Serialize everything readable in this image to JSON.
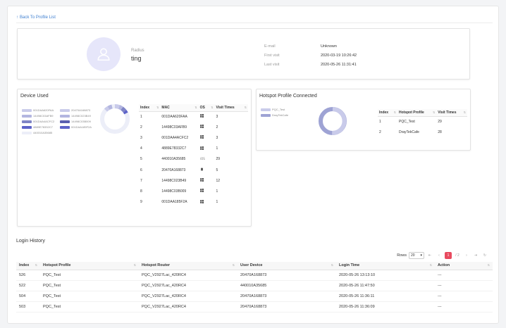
{
  "back_link": "Back To Profile List",
  "profile": {
    "radius_label": "Radius",
    "radius_value": "ting",
    "email_label": "E-mail",
    "email_value": "Unknown",
    "first_visit_label": "First visit",
    "first_visit_value": "2020-03-19 10:26:42",
    "last_visit_label": "Last visit",
    "last_visit_value": "2020-05-26 11:31:41"
  },
  "device_used": {
    "title": "Device Used",
    "legend": [
      {
        "label": "001DAA620FAA",
        "color": "#c9cbea"
      },
      {
        "label": "20470A168873",
        "color": "#c9cbea"
      },
      {
        "label": "14498C03AFB9",
        "color": "#b3b6e0"
      },
      {
        "label": "14498C023B49",
        "color": "#b3b6e0"
      },
      {
        "label": "001DAA4ACFC2",
        "color": "#7f84c6"
      },
      {
        "label": "14498C03B009",
        "color": "#5a5fb0"
      },
      {
        "label": "4889E78332C7",
        "color": "#5d63c9"
      },
      {
        "label": "001DAA185F2A",
        "color": "#5d63c9"
      },
      {
        "label": "440010A35685",
        "color": "#eceef8"
      }
    ],
    "columns": [
      "Index",
      "MAC",
      "OS",
      "Visit Times"
    ],
    "rows": [
      {
        "index": "1",
        "mac": "001DAA620FAA",
        "os": "windows",
        "visits": "3"
      },
      {
        "index": "2",
        "mac": "14498C03AFB9",
        "os": "windows",
        "visits": "2"
      },
      {
        "index": "3",
        "mac": "001DAA4ACFC2",
        "os": "windows",
        "visits": "3"
      },
      {
        "index": "4",
        "mac": "4889E78332C7",
        "os": "windows",
        "visits": "1"
      },
      {
        "index": "5",
        "mac": "440010A35685",
        "os": "ios",
        "visits": "29"
      },
      {
        "index": "6",
        "mac": "20470A168873",
        "os": "android",
        "visits": "5"
      },
      {
        "index": "7",
        "mac": "14498C023B49",
        "os": "windows",
        "visits": "12"
      },
      {
        "index": "8",
        "mac": "14498C03B009",
        "os": "windows",
        "visits": "1"
      },
      {
        "index": "9",
        "mac": "001DAA185F2A",
        "os": "windows",
        "visits": "1"
      }
    ]
  },
  "hotspot_connected": {
    "title": "Hotspot Profile Connected",
    "legend": [
      {
        "label": "PQC_Test",
        "color": "#c9cbea"
      },
      {
        "label": "DrayTekCafe",
        "color": "#9ea3d4"
      }
    ],
    "columns": [
      "Index",
      "Hotspot Profile",
      "Visit Times"
    ],
    "rows": [
      {
        "index": "1",
        "profile": "PQC_Test",
        "visits": "29"
      },
      {
        "index": "2",
        "profile": "DrayTekCafe",
        "visits": "28"
      }
    ]
  },
  "login_history": {
    "title": "Login History",
    "rows_label": "Rows",
    "rows_value": "20",
    "current_page": "1",
    "total_pages": "/ 2",
    "columns": [
      "Index",
      "Hotspot Profile",
      "Hotspot Router",
      "User Device",
      "Login Time",
      "Action"
    ],
    "rows": [
      {
        "index": "526",
        "profile": "PQC_Test",
        "router": "PQC_V2927Lac_420RC4",
        "device": "20470A168873",
        "time": "2020-05-26 13:13:10",
        "action": "---"
      },
      {
        "index": "522",
        "profile": "PQC_Test",
        "router": "PQC_V2927Lac_420RC4",
        "device": "440010A35685",
        "time": "2020-05-26 11:47:50",
        "action": "---"
      },
      {
        "index": "504",
        "profile": "PQC_Test",
        "router": "PQC_V2927Lac_420RC4",
        "device": "20470A168873",
        "time": "2020-05-26 11:36:11",
        "action": "---"
      },
      {
        "index": "503",
        "profile": "PQC_Test",
        "router": "PQC_V2927Lac_420RC4",
        "device": "20470A168873",
        "time": "2020-05-26 11:36:09",
        "action": "---"
      }
    ]
  },
  "icons": {
    "back": "arrow-up-icon",
    "avatar": "user-icon",
    "sort": "sort-icon",
    "refresh": "refresh-icon"
  }
}
